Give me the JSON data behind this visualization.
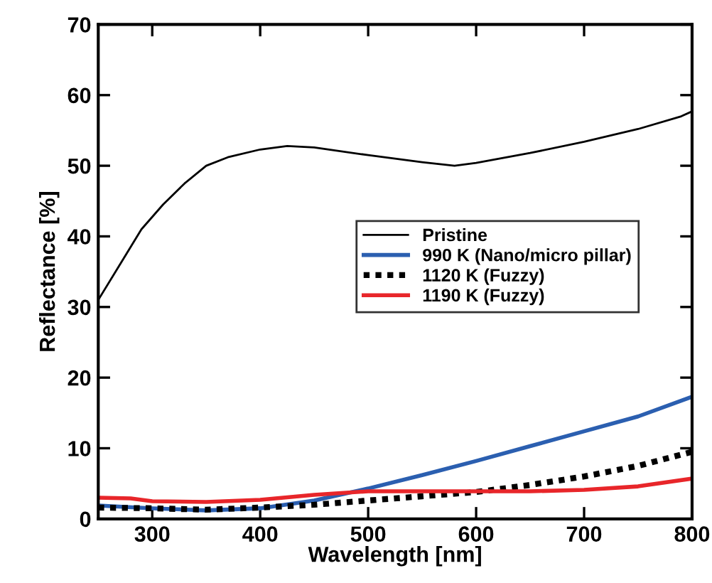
{
  "chart_data": {
    "type": "line",
    "xlabel": "Wavelength [nm]",
    "ylabel": "Reflectance [%]",
    "xlim": [
      250,
      800
    ],
    "ylim": [
      0,
      70
    ],
    "xticks": [
      300,
      400,
      500,
      600,
      700,
      800
    ],
    "yticks": [
      0,
      10,
      20,
      30,
      40,
      50,
      60,
      70
    ],
    "grid": false,
    "legend": "right",
    "series": [
      {
        "name": "Pristine",
        "color": "#000000",
        "line_style": "solid",
        "x": [
          250,
          270,
          290,
          310,
          330,
          350,
          370,
          400,
          425,
          450,
          500,
          550,
          580,
          600,
          650,
          700,
          750,
          790,
          800
        ],
        "values": [
          31,
          36,
          41,
          44.5,
          47.5,
          50,
          51.2,
          52.3,
          52.8,
          52.6,
          51.5,
          50.5,
          50,
          50.4,
          51.8,
          53.4,
          55.2,
          57,
          57.7
        ]
      },
      {
        "name": "990 K (Nano/micro pillar)",
        "color": "#2b5fb0",
        "line_style": "solid",
        "x": [
          250,
          300,
          350,
          400,
          450,
          500,
          550,
          600,
          650,
          700,
          750,
          800
        ],
        "values": [
          1.9,
          1.5,
          1.2,
          1.5,
          2.6,
          4.3,
          6.2,
          8.2,
          10.3,
          12.4,
          14.5,
          17.3
        ]
      },
      {
        "name": "1120 K (Fuzzy)",
        "color": "#000000",
        "line_style": "dotted",
        "x": [
          250,
          300,
          350,
          400,
          450,
          500,
          550,
          600,
          650,
          700,
          750,
          800
        ],
        "values": [
          1.6,
          1.5,
          1.3,
          1.6,
          2.0,
          2.6,
          3.2,
          3.8,
          4.8,
          6.0,
          7.5,
          9.5
        ]
      },
      {
        "name": "1190 K (Fuzzy)",
        "color": "#e8262a",
        "line_style": "solid",
        "x": [
          250,
          280,
          300,
          350,
          400,
          450,
          500,
          550,
          600,
          650,
          700,
          750,
          800
        ],
        "values": [
          3.0,
          2.9,
          2.5,
          2.4,
          2.7,
          3.4,
          3.9,
          3.9,
          3.9,
          3.9,
          4.1,
          4.6,
          5.7
        ]
      }
    ]
  }
}
